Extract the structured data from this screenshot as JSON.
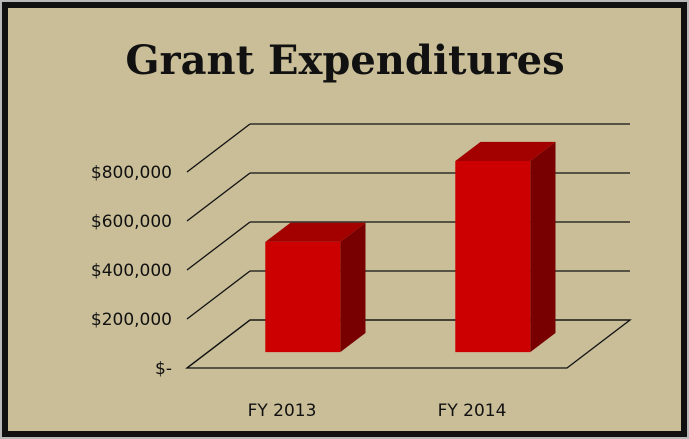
{
  "chart_data": {
    "type": "bar3d",
    "title": "Grant Expenditures",
    "categories": [
      "FY 2013",
      "FY 2014"
    ],
    "values": [
      450000,
      780000
    ],
    "color": "#cc0000",
    "ylim": [
      0,
      800000
    ],
    "yticks": [
      {
        "value": 0,
        "label": "$-"
      },
      {
        "value": 200000,
        "label": "$200,000"
      },
      {
        "value": 400000,
        "label": "$400,000"
      },
      {
        "value": 600000,
        "label": "$600,000"
      },
      {
        "value": 800000,
        "label": "$800,000"
      }
    ],
    "grid": true
  }
}
